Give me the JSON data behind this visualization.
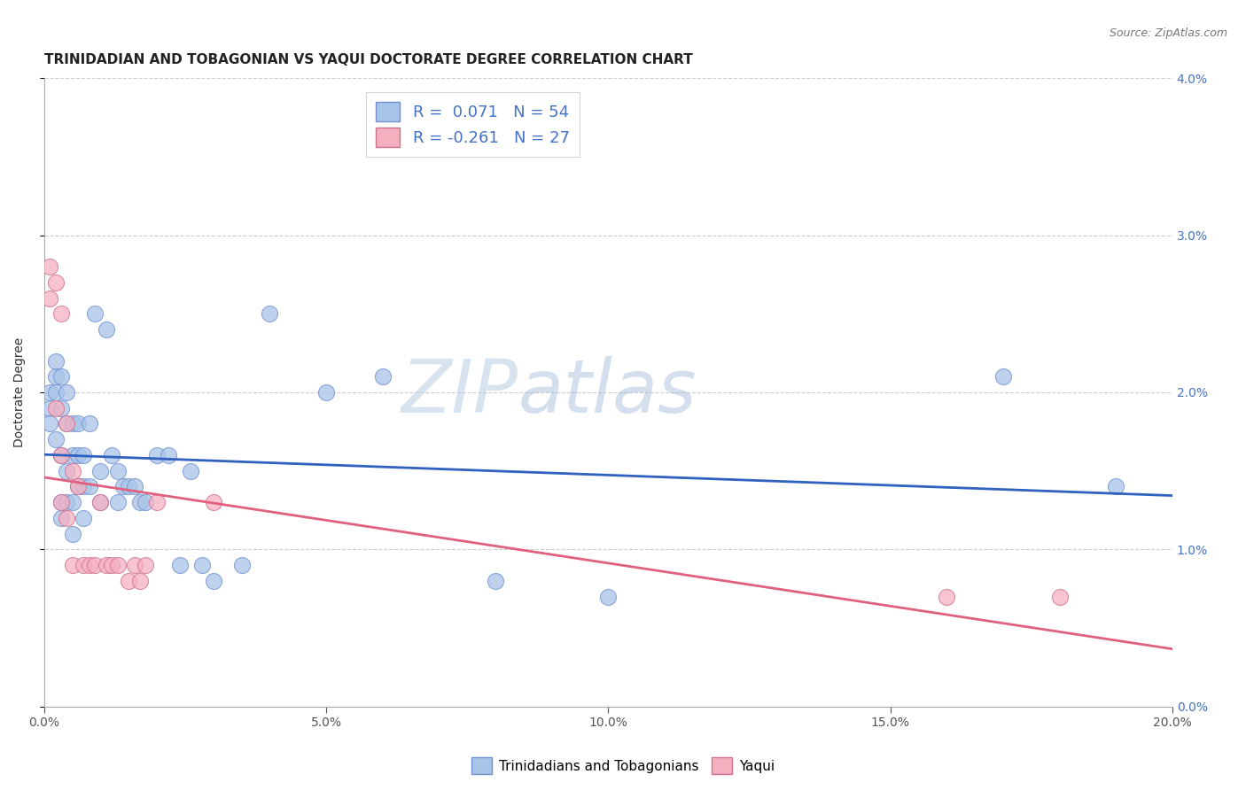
{
  "title": "TRINIDADIAN AND TOBAGONIAN VS YAQUI DOCTORATE DEGREE CORRELATION CHART",
  "source": "Source: ZipAtlas.com",
  "ylabel": "Doctorate Degree",
  "xlim": [
    0,
    0.2
  ],
  "ylim": [
    0,
    0.04
  ],
  "blue_R": 0.071,
  "blue_N": 54,
  "pink_R": -0.261,
  "pink_N": 27,
  "blue_color": "#a8c4e8",
  "pink_color": "#f5b0c0",
  "blue_line_color": "#3060c0",
  "pink_line_color": "#e06080",
  "blue_edge_color": "#7090d0",
  "pink_edge_color": "#d07090",
  "watermark_zip": "ZIP",
  "watermark_atlas": "atlas",
  "blue_points_x": [
    0.001,
    0.001,
    0.001,
    0.002,
    0.002,
    0.002,
    0.002,
    0.003,
    0.003,
    0.003,
    0.003,
    0.003,
    0.004,
    0.004,
    0.004,
    0.004,
    0.005,
    0.005,
    0.005,
    0.005,
    0.006,
    0.006,
    0.006,
    0.007,
    0.007,
    0.007,
    0.008,
    0.008,
    0.009,
    0.01,
    0.01,
    0.011,
    0.012,
    0.013,
    0.013,
    0.014,
    0.015,
    0.016,
    0.017,
    0.018,
    0.02,
    0.022,
    0.024,
    0.026,
    0.028,
    0.03,
    0.035,
    0.04,
    0.05,
    0.06,
    0.08,
    0.1,
    0.17,
    0.19
  ],
  "blue_points_y": [
    0.02,
    0.019,
    0.018,
    0.022,
    0.021,
    0.02,
    0.017,
    0.021,
    0.019,
    0.016,
    0.013,
    0.012,
    0.02,
    0.018,
    0.015,
    0.013,
    0.018,
    0.016,
    0.013,
    0.011,
    0.018,
    0.016,
    0.014,
    0.016,
    0.014,
    0.012,
    0.018,
    0.014,
    0.025,
    0.015,
    0.013,
    0.024,
    0.016,
    0.015,
    0.013,
    0.014,
    0.014,
    0.014,
    0.013,
    0.013,
    0.016,
    0.016,
    0.009,
    0.015,
    0.009,
    0.008,
    0.009,
    0.025,
    0.02,
    0.021,
    0.008,
    0.007,
    0.021,
    0.014
  ],
  "pink_points_x": [
    0.001,
    0.001,
    0.002,
    0.002,
    0.003,
    0.003,
    0.003,
    0.004,
    0.004,
    0.005,
    0.005,
    0.006,
    0.007,
    0.008,
    0.009,
    0.01,
    0.011,
    0.012,
    0.013,
    0.015,
    0.016,
    0.017,
    0.018,
    0.02,
    0.03,
    0.16,
    0.18
  ],
  "pink_points_y": [
    0.028,
    0.026,
    0.027,
    0.019,
    0.025,
    0.016,
    0.013,
    0.018,
    0.012,
    0.015,
    0.009,
    0.014,
    0.009,
    0.009,
    0.009,
    0.013,
    0.009,
    0.009,
    0.009,
    0.008,
    0.009,
    0.008,
    0.009,
    0.013,
    0.013,
    0.007,
    0.007
  ],
  "legend_blue_label": "Trinidadians and Tobagonians",
  "legend_pink_label": "Yaqui",
  "title_fontsize": 11,
  "source_fontsize": 9,
  "axis_label_fontsize": 10,
  "tick_fontsize": 10,
  "background_color": "#ffffff",
  "grid_color": "#cccccc",
  "right_axis_color": "#4472c4",
  "xticks": [
    0.0,
    0.05,
    0.1,
    0.15,
    0.2
  ],
  "yticks": [
    0.0,
    0.01,
    0.02,
    0.03,
    0.04
  ]
}
